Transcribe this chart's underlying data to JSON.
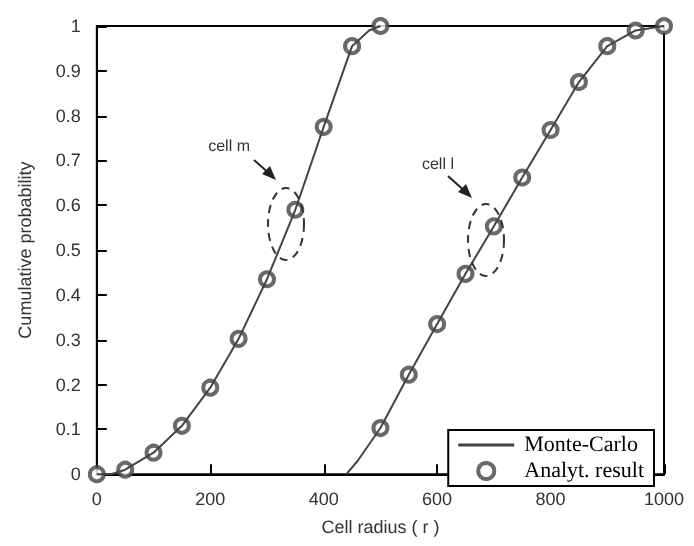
{
  "chart_data": {
    "type": "line",
    "xlabel": "Cell radius ( r )",
    "ylabel": "Cumulative probability",
    "xlim": [
      0,
      1000
    ],
    "xticks": [
      0,
      200,
      400,
      600,
      800,
      1000
    ],
    "ylim": [
      0,
      1
    ],
    "yticks": [
      0,
      0.1,
      0.2,
      0.3,
      0.4,
      0.5,
      0.6,
      0.7,
      0.8,
      0.9,
      1
    ],
    "grid": false,
    "legend": "bottom right",
    "series": [
      {
        "name": "Monte-Carlo",
        "marker": "none",
        "color": "#444444",
        "x": [
          0,
          25,
          50,
          100,
          150,
          200,
          250,
          300,
          350,
          400,
          450,
          480,
          500
        ],
        "values": [
          0,
          0,
          0.01,
          0.048,
          0.108,
          0.193,
          0.302,
          0.435,
          0.59,
          0.775,
          0.955,
          0.99,
          1
        ]
      },
      {
        "marker": "none",
        "color": "#444444",
        "x": [
          440,
          460,
          500,
          550,
          600,
          650,
          700,
          750,
          800,
          850,
          900,
          950,
          1000
        ],
        "values": [
          0,
          0.03,
          0.103,
          0.222,
          0.335,
          0.447,
          0.553,
          0.662,
          0.768,
          0.875,
          0.955,
          0.99,
          1
        ]
      },
      {
        "name": "Analyt. result",
        "type": "scatter",
        "marker": "circle",
        "color": "#444444",
        "x": [
          0,
          50,
          100,
          150,
          200,
          250,
          300,
          350,
          400,
          450,
          500
        ],
        "values": [
          0,
          0.01,
          0.048,
          0.108,
          0.193,
          0.302,
          0.435,
          0.59,
          0.775,
          0.955,
          1
        ]
      },
      {
        "type": "scatter",
        "marker": "circle",
        "color": "#444444",
        "x": [
          500,
          550,
          600,
          650,
          700,
          750,
          800,
          850,
          900,
          950,
          1000
        ],
        "values": [
          0.103,
          0.222,
          0.335,
          0.447,
          0.553,
          0.662,
          0.768,
          0.875,
          0.955,
          0.99,
          1
        ]
      }
    ],
    "annotations": [
      "cell m",
      "cell l"
    ]
  }
}
